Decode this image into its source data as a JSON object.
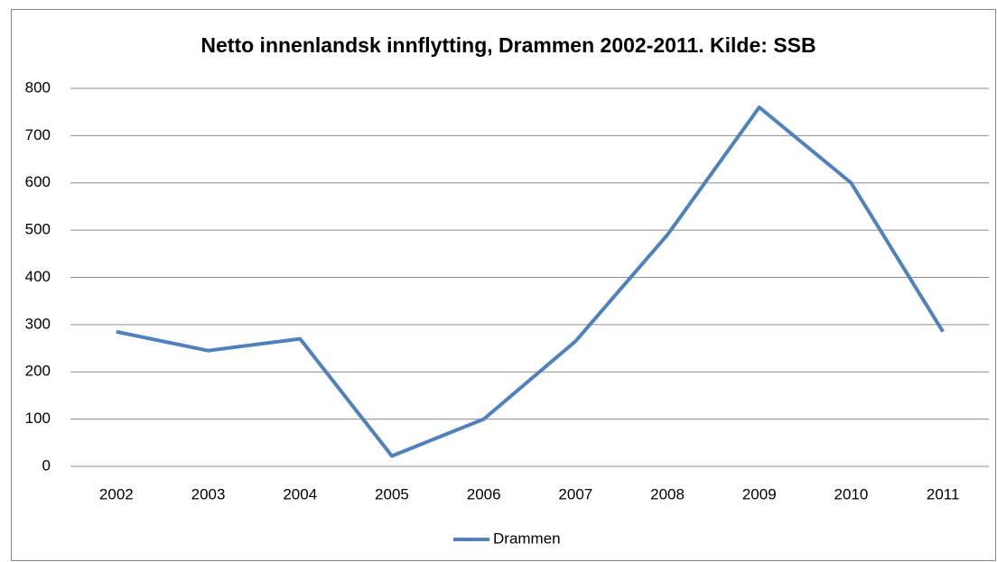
{
  "chart_data": {
    "type": "line",
    "title": "Netto innenlandsk innflytting, Drammen 2002-2011. Kilde: SSB",
    "categories": [
      "2002",
      "2003",
      "2004",
      "2005",
      "2006",
      "2007",
      "2008",
      "2009",
      "2010",
      "2011"
    ],
    "series": [
      {
        "name": "Drammen",
        "color": "#4f81bd",
        "values": [
          285,
          245,
          270,
          22,
          100,
          265,
          490,
          760,
          600,
          285
        ]
      }
    ],
    "ylim": [
      0,
      800
    ],
    "yticks": [
      0,
      100,
      200,
      300,
      400,
      500,
      600,
      700,
      800
    ],
    "grid": true,
    "legend": "bottom"
  }
}
